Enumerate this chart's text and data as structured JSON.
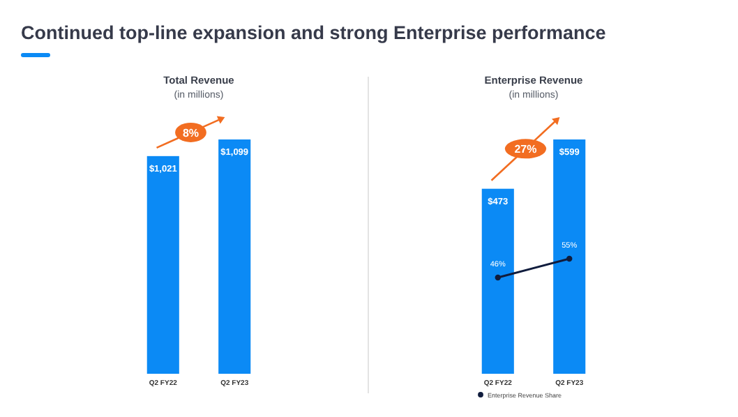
{
  "chart_data": [
    {
      "type": "bar",
      "title": "Total Revenue",
      "subtitle": "(in millions)",
      "categories": [
        "Q2 FY22",
        "Q2 FY23"
      ],
      "tick_labels": "x",
      "legend": false,
      "annotations": [
        "8%",
        "Continued top-line expansion and strong Enterprise performance"
      ],
      "series": [
        {
          "color": "#0b8af5",
          "values": [
            1021,
            1099
          ],
          "value_labels": [
            "$1,021",
            "$1,099"
          ]
        }
      ]
    },
    {
      "type": "bar",
      "title": "Enterprise Revenue",
      "subtitle": "(in millions)",
      "categories": [
        "Q2 FY22",
        "Q2 FY23"
      ],
      "tick_labels": "x",
      "legend": "bottom",
      "marker": "circle",
      "annotations": [
        "27%"
      ],
      "series": [
        {
          "color": "#0b8af5",
          "values": [
            473,
            599
          ],
          "value_labels": [
            "$473",
            "$599"
          ]
        },
        {
          "type": "line",
          "axis": "y2",
          "name": "Enterprise Revenue Share",
          "color": "#101c3d",
          "values": [
            46,
            55
          ],
          "value_labels": [
            "46%",
            "55%"
          ]
        }
      ]
    }
  ]
}
